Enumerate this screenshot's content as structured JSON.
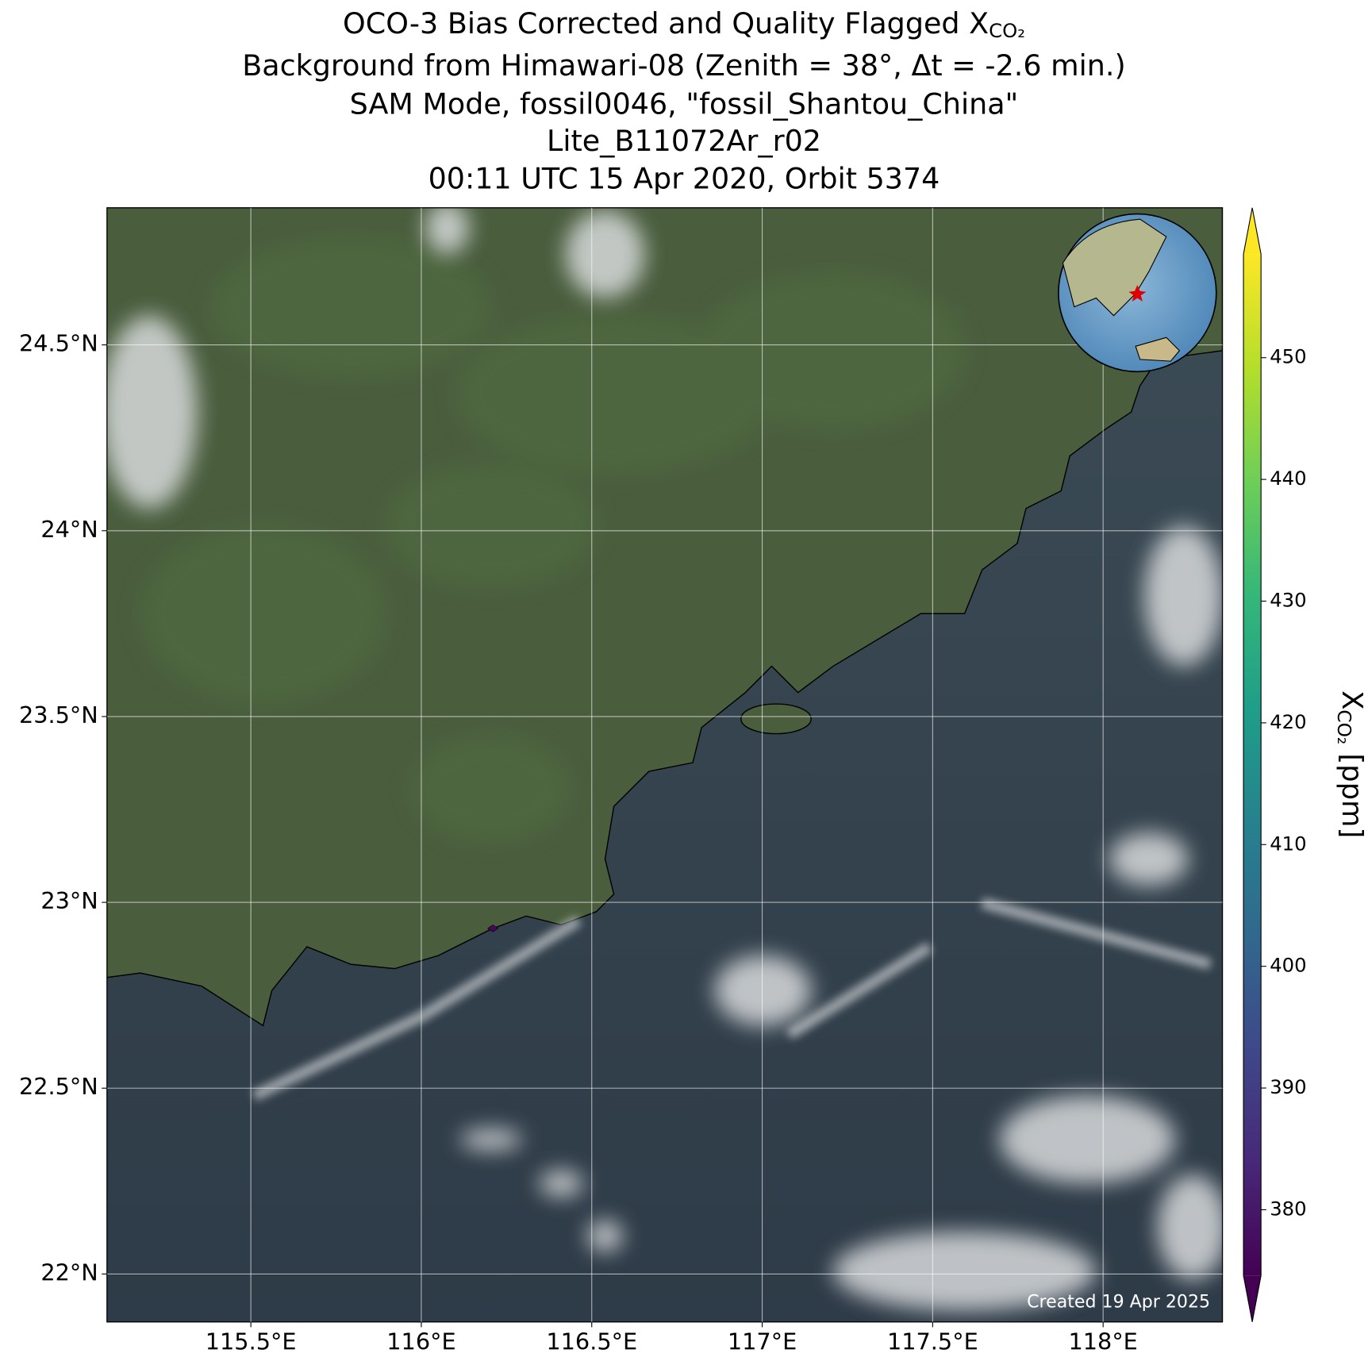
{
  "chart_data": {
    "type": "map",
    "title_lines": [
      {
        "text": "OCO-3 Bias Corrected and Quality Flagged X",
        "subscript": "CO₂"
      },
      {
        "text": "Background from Himawari-08 (Zenith = 38°, Δt = -2.6 min.)"
      },
      {
        "text": "SAM Mode, fossil0046, \"fossil_Shantou_China\""
      },
      {
        "text": "Lite_B11072Ar_r02"
      },
      {
        "text": "00:11 UTC 15 Apr 2020, Orbit 5374"
      }
    ],
    "xlim": [
      115.078,
      118.35
    ],
    "ylim": [
      21.871,
      24.869
    ],
    "xticks": [
      {
        "value": 115.5,
        "label": "115.5°E"
      },
      {
        "value": 116,
        "label": "116°E"
      },
      {
        "value": 116.5,
        "label": "116.5°E"
      },
      {
        "value": 117,
        "label": "117°E"
      },
      {
        "value": 117.5,
        "label": "117.5°E"
      },
      {
        "value": 118,
        "label": "118°E"
      }
    ],
    "yticks": [
      {
        "value": 22,
        "label": "22°N"
      },
      {
        "value": 22.5,
        "label": "22.5°N"
      },
      {
        "value": 23,
        "label": "23°N"
      },
      {
        "value": 23.5,
        "label": "23.5°N"
      },
      {
        "value": 24,
        "label": "24°N"
      },
      {
        "value": 24.5,
        "label": "24.5°N"
      }
    ],
    "grid": true,
    "soundings": {
      "lon": [
        116.21
      ],
      "lat": [
        22.93
      ],
      "values": [
        376
      ]
    },
    "colormap": "viridis",
    "clim": [
      374.6,
      458.5
    ],
    "cticks": [
      380,
      390,
      400,
      410,
      420,
      430,
      440,
      450
    ],
    "colorbar_label": {
      "text": "X",
      "subscript": "CO₂",
      "unit": " [ppm]"
    },
    "footer": "Created 19 Apr 2025"
  }
}
